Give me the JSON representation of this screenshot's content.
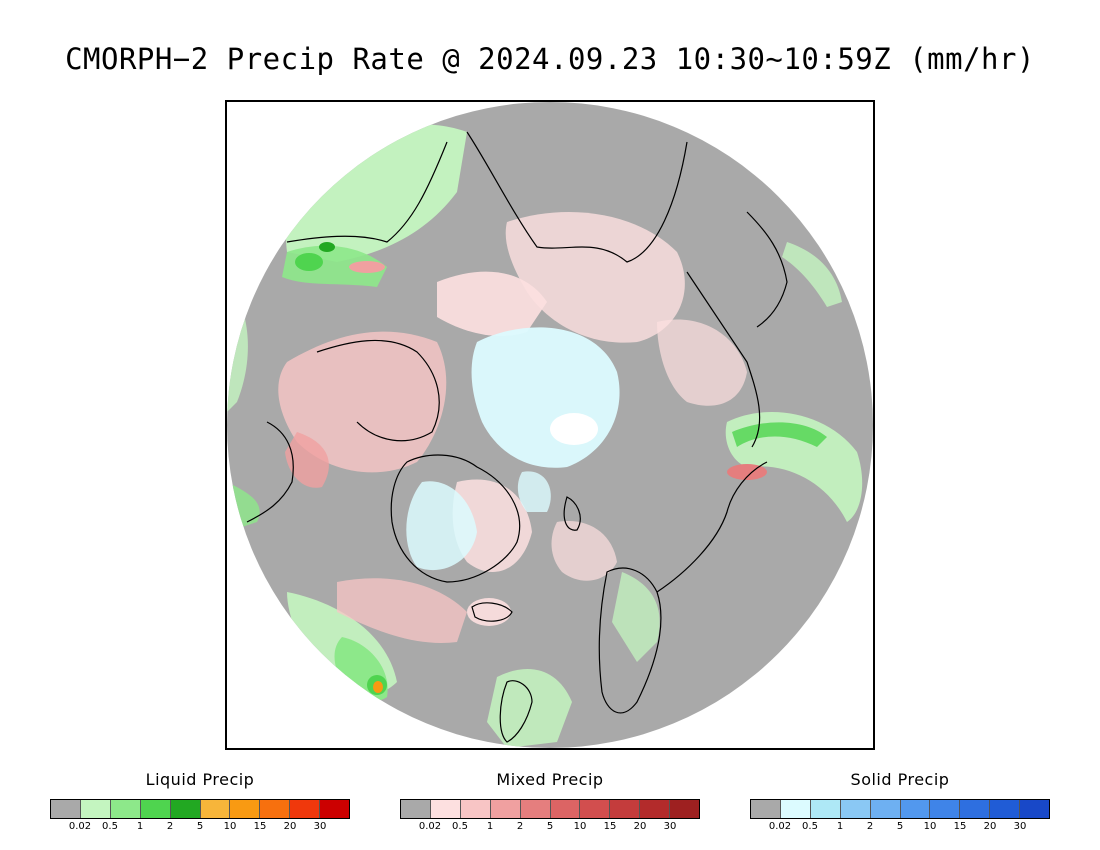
{
  "title": "CMORPH−2 Precip Rate @ 2024.09.23 10:30∼10:59Z (mm/hr)",
  "map": {
    "projection": "north polar stereographic",
    "background_color": "#a9a9a9",
    "coastline_color": "#000000"
  },
  "legends": [
    {
      "title": "Liquid Precip",
      "colors": [
        "#a9a9a9",
        "#c4f5c0",
        "#8de88a",
        "#4fd44f",
        "#22a822",
        "#f7b53a",
        "#f99a12",
        "#f7700e",
        "#f0380c",
        "#cc0000"
      ],
      "ticks": [
        "0.02",
        "0.5",
        "1",
        "2",
        "5",
        "10",
        "15",
        "20",
        "30"
      ]
    },
    {
      "title": "Mixed Precip",
      "colors": [
        "#a9a9a9",
        "#fde0e0",
        "#f8c5c5",
        "#f0a0a0",
        "#e57e7e",
        "#dc6464",
        "#d24e4e",
        "#c43c3c",
        "#b32b2b",
        "#9e2020"
      ],
      "ticks": [
        "0.02",
        "0.5",
        "1",
        "2",
        "5",
        "10",
        "15",
        "20",
        "30"
      ]
    },
    {
      "title": "Solid Precip",
      "colors": [
        "#a9a9a9",
        "#dcfbff",
        "#aee8f6",
        "#8ac8f4",
        "#6eb0f2",
        "#5298ee",
        "#3f84e8",
        "#2e6fe0",
        "#205cd6",
        "#1848c8"
      ],
      "ticks": [
        "0.02",
        "0.5",
        "1",
        "2",
        "5",
        "10",
        "15",
        "20",
        "30"
      ]
    }
  ]
}
